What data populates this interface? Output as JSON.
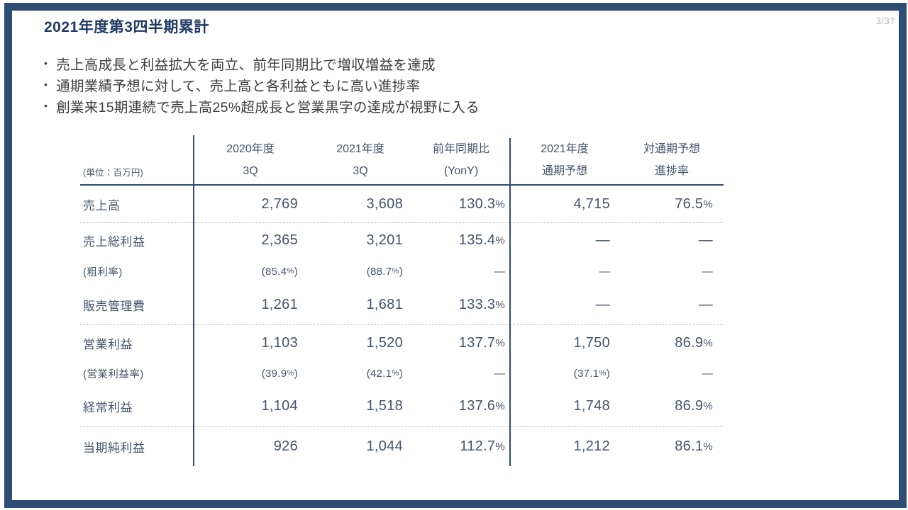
{
  "page": {
    "title": "2021年度第3四半期累計",
    "page_number": "3/37",
    "bullet_char": "•"
  },
  "bullets": [
    "売上高成長と利益拡大を両立、前年同期比で増収増益を達成",
    "通期業績予想に対して、売上高と各利益ともに高い進捗率",
    "創業来15期連続で売上高25%超成長と営業黒字の達成が視野に入る"
  ],
  "table": {
    "unit_label": "(単位：百万円)",
    "columns": [
      {
        "line1": "2020年度",
        "line2": "3Q"
      },
      {
        "line1": "2021年度",
        "line2": "3Q"
      },
      {
        "line1": "前年同期比",
        "line2": "(YonY)"
      },
      {
        "line1": "2021年度",
        "line2": "通期予想"
      },
      {
        "line1": "対通期予想",
        "line2": "進捗率"
      }
    ],
    "rows": [
      {
        "label": "売上高",
        "values": [
          "2,769",
          "3,608",
          "130.3%",
          "4,715",
          "76.5%"
        ],
        "sub": false,
        "separator_after": true
      },
      {
        "label": "売上総利益",
        "values": [
          "2,365",
          "3,201",
          "135.4%",
          "—",
          "—"
        ],
        "sub": false,
        "separator_after": false
      },
      {
        "label": "(粗利率)",
        "values": [
          "(85.4%)",
          "(88.7%)",
          "—",
          "—",
          "—"
        ],
        "sub": true,
        "separator_after": false
      },
      {
        "label": "販売管理費",
        "values": [
          "1,261",
          "1,681",
          "133.3%",
          "—",
          "—"
        ],
        "sub": false,
        "separator_after": true
      },
      {
        "label": "営業利益",
        "values": [
          "1,103",
          "1,520",
          "137.7%",
          "1,750",
          "86.9%"
        ],
        "sub": false,
        "separator_after": false
      },
      {
        "label": "(営業利益率)",
        "values": [
          "(39.9%)",
          "(42.1%)",
          "—",
          "(37.1%)",
          "—"
        ],
        "sub": true,
        "separator_after": false
      },
      {
        "label": "経常利益",
        "values": [
          "1,104",
          "1,518",
          "137.6%",
          "1,748",
          "86.9%"
        ],
        "sub": false,
        "separator_after": true
      },
      {
        "label": "当期純利益",
        "values": [
          "926",
          "1,044",
          "112.7%",
          "1,212",
          "86.1%"
        ],
        "sub": false,
        "separator_after": false
      }
    ]
  },
  "colors": {
    "frame_border": "#2e4d74",
    "title_text": "#203a66",
    "body_text": "#3d3d3d",
    "table_text": "#44546a",
    "table_line": "#2e4d74",
    "table_dotted_line": "#a6b4c8",
    "page_number_text": "#b5b5b5"
  }
}
